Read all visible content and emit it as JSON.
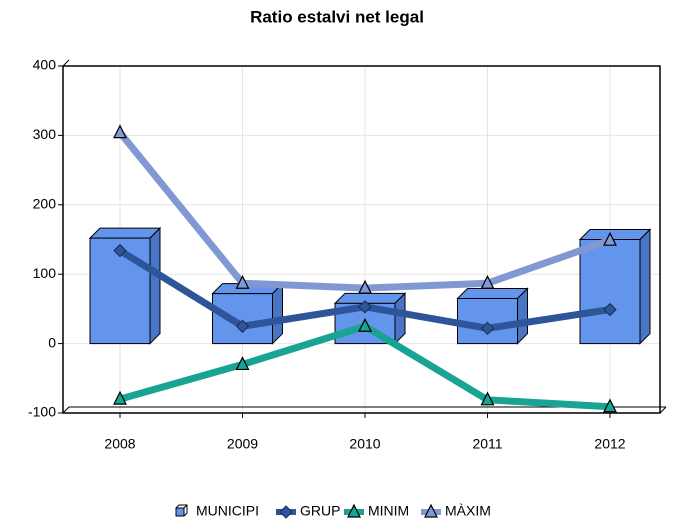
{
  "chart_data": {
    "type": "bar-line",
    "title": "Ratio estalvi net legal",
    "categories": [
      "2008",
      "2009",
      "2010",
      "2011",
      "2012"
    ],
    "series": [
      {
        "name": "MUNICIPI",
        "color": "#6495ed",
        "kind": "bar",
        "values": [
          152,
          72,
          58,
          65,
          150
        ]
      },
      {
        "name": "GRUP",
        "color": "#2e5597",
        "kind": "line",
        "marker": "diamond",
        "values": [
          134,
          25,
          53,
          22,
          49
        ]
      },
      {
        "name": "MINIM",
        "color": "#19a393",
        "kind": "line",
        "marker": "triangle",
        "values": [
          -80,
          -30,
          25,
          -81,
          -91
        ]
      },
      {
        "name": "MÀXIM",
        "color": "#8198d2",
        "kind": "line",
        "marker": "triangle",
        "values": [
          304,
          87,
          80,
          87,
          149
        ]
      }
    ],
    "ylim": [
      -100,
      400
    ],
    "yticks": [
      -100,
      0,
      100,
      200,
      300,
      400
    ],
    "grid": true,
    "legend": "bottom"
  }
}
